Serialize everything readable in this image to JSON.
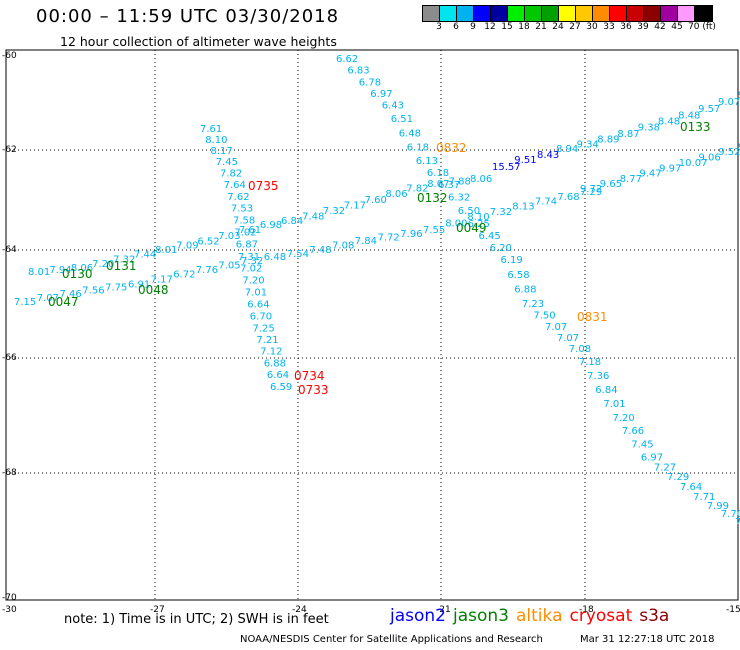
{
  "header": {
    "title": "00:00 – 11:59 UTC 03/30/2018",
    "subtitle": "12 hour collection of altimeter wave heights"
  },
  "colorbar": {
    "colors": [
      "#8c8c8c",
      "#00e5ee",
      "#00b2ee",
      "#0000ff",
      "#0000a0",
      "#00ee00",
      "#00c800",
      "#00a000",
      "#ffff00",
      "#ffc800",
      "#ff8c00",
      "#ff0000",
      "#c80000",
      "#8b0000",
      "#a000a0",
      "#ff9bff",
      "#000000"
    ],
    "labels": [
      "3",
      "6",
      "9",
      "12",
      "15",
      "18",
      "21",
      "24",
      "27",
      "30",
      "33",
      "36",
      "39",
      "42",
      "45",
      "70 (ft)"
    ]
  },
  "axes": {
    "lat_labels": [
      "-60",
      "-62",
      "-64",
      "-66",
      "-68",
      "-70"
    ],
    "lon_labels": [
      "-30",
      "-27",
      "-24",
      "-21",
      "-18",
      "-15"
    ]
  },
  "tracks": [
    {
      "name": "track_nw_se",
      "color": "#00b2ee",
      "labels": [
        "6.62",
        "6.83",
        "6.78",
        "6.97",
        "6.43",
        "6.51",
        "6.48",
        "6.18",
        "6.13",
        "6.18",
        "6.37",
        "6.32",
        "6.50",
        "6.25",
        "6.45",
        "6.20",
        "6.19",
        "6.58",
        "6.88",
        "7.23",
        "7.50",
        "7.07",
        "7.07",
        "7.08",
        "7.18",
        "7.36",
        "6.84",
        "7.01",
        "7.20",
        "7.66",
        "7.45",
        "6.97",
        "7.27",
        "7.29",
        "7.64",
        "7.71",
        "7.99",
        "7.70",
        "7"
      ]
    },
    {
      "name": "track_w_e_upper",
      "color": "#00b2ee",
      "labels": [
        "8.01",
        "7.94",
        "8.06",
        "7.20",
        "7.32",
        "7.44",
        "8.01",
        "7.09",
        "6.52",
        "7.03",
        "7.61",
        "6.98",
        "6.84",
        "7.48",
        "7.32",
        "7.17",
        "7.60",
        "8.06",
        "7.82",
        "8.07",
        "7.88",
        "8.06"
      ]
    },
    {
      "name": "track_w_e_lower",
      "color": "#00b2ee",
      "labels": [
        "7.15",
        "7.07",
        "7.46",
        "7.56",
        "7.75",
        "6.91",
        "7.17",
        "6.72",
        "7.76",
        "7.05",
        "7.32",
        "6.48",
        "7.54",
        "7.48",
        "7.08",
        "7.84",
        "7.72",
        "7.96",
        "7.55",
        "8.00",
        "8.10",
        "7.32",
        "8.13",
        "7.74",
        "7.68",
        "7.29"
      ]
    },
    {
      "name": "track_cross_east",
      "color": "#00b2ee",
      "labels": [
        "9.72",
        "9.65",
        "8.77",
        "9.47",
        "9.97",
        "10.07",
        "9.06",
        "9.52",
        "9"
      ]
    },
    {
      "name": "track_upper_blue",
      "color": "#00b2ee",
      "labels": [
        "8.94",
        "9.34",
        "8.89",
        "8.87",
        "9.38",
        "8.48",
        "8.48",
        "9.57",
        "9.07",
        "9"
      ]
    },
    {
      "name": "track_green_blue",
      "color": "#0000ff",
      "labels": [
        "15.57",
        "9.51",
        "8.43"
      ]
    },
    {
      "name": "track_short",
      "color": "#00b2ee",
      "labels": [
        "7.61",
        "8.10",
        "8.17",
        "7.45",
        "7.82",
        "7.64",
        "7.62",
        "7.53",
        "7.58",
        "7.02",
        "6.87",
        "7.31",
        "7.02",
        "7.20",
        "7.01",
        "6.64",
        "6.70",
        "7.25",
        "7.21",
        "7.12",
        "6.88",
        "6.64",
        "6.59"
      ]
    }
  ],
  "pass_times": [
    {
      "time": "0832",
      "satellite": "altika",
      "color": "#ff8c00"
    },
    {
      "time": "0735",
      "satellite": "cryosat",
      "color": "#ff0000"
    },
    {
      "time": "0132",
      "satellite": "jason3",
      "color": "#008000"
    },
    {
      "time": "0049",
      "satellite": "jason3",
      "color": "#008000"
    },
    {
      "time": "0130",
      "satellite": "jason3",
      "color": "#008000"
    },
    {
      "time": "0131",
      "satellite": "jason3",
      "color": "#008000"
    },
    {
      "time": "0048",
      "satellite": "jason3",
      "color": "#008000"
    },
    {
      "time": "0047",
      "satellite": "jason3",
      "color": "#008000"
    },
    {
      "time": "0831",
      "satellite": "altika",
      "color": "#ff8c00"
    },
    {
      "time": "0734",
      "satellite": "cryosat",
      "color": "#ff0000"
    },
    {
      "time": "0733",
      "satellite": "cryosat",
      "color": "#ff0000"
    },
    {
      "time": "0133",
      "satellite": "jason3",
      "color": "#008000"
    }
  ],
  "note": "note:  1) Time is in UTC;  2) SWH is in feet",
  "legend": [
    {
      "label": "jason2",
      "color": "#0000ff"
    },
    {
      "label": "jason3",
      "color": "#008000"
    },
    {
      "label": "altika",
      "color": "#ff8c00"
    },
    {
      "label": "cryosat",
      "color": "#ff0000"
    },
    {
      "label": "s3a",
      "color": "#8b0000"
    }
  ],
  "credit": "NOAA/NESDIS Center for Satellite Applications and Research",
  "credit_date": "Mar 31 12:27:18 UTC 2018"
}
